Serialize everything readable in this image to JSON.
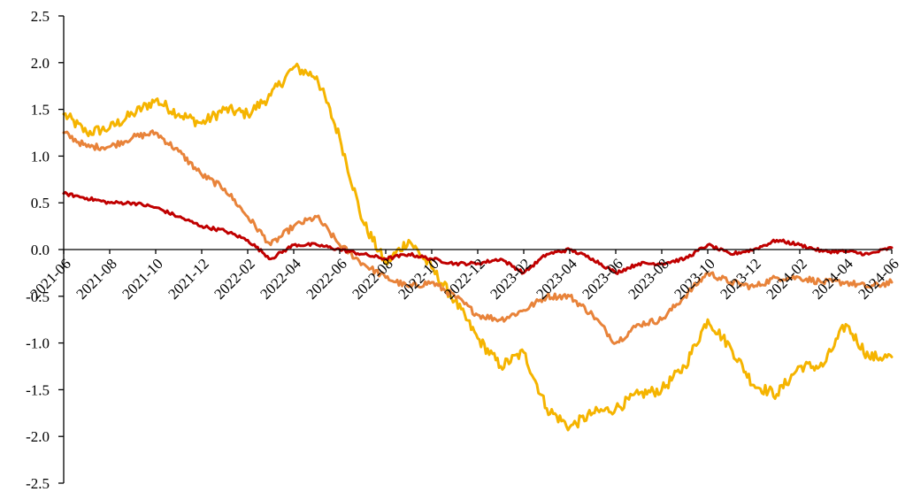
{
  "chart_data": {
    "type": "line",
    "title": "",
    "xlabel": "",
    "ylabel": "",
    "ylim": [
      -2.5,
      2.5
    ],
    "yticks": [
      -2.5,
      -2.0,
      -1.5,
      -1.0,
      -0.5,
      0.0,
      0.5,
      1.0,
      1.5,
      2.0,
      2.5
    ],
    "ytick_labels": [
      "-2.5",
      "-2.0",
      "-1.5",
      "-1.0",
      "-0.5",
      "0.0",
      "0.5",
      "1.0",
      "1.5",
      "2.0",
      "2.5"
    ],
    "xlim": [
      "2021-06",
      "2024-06"
    ],
    "xtick_labels": [
      "2021-06",
      "2021-08",
      "2021-10",
      "2021-12",
      "2022-02",
      "2022-04",
      "2022-06",
      "2022-08",
      "2022-10",
      "2022-12",
      "2023-02",
      "2023-04",
      "2023-06",
      "2023-08",
      "2023-10",
      "2023-12",
      "2024-02",
      "2024-04",
      "2024-06"
    ],
    "legend": "none",
    "grid": false,
    "series": [
      {
        "color": "#F5B400",
        "x": [
          "2021-06",
          "2021-07",
          "2021-08",
          "2021-09",
          "2021-10",
          "2021-11",
          "2021-12",
          "2022-01",
          "2022-02",
          "2022-03",
          "2022-04",
          "2022-05",
          "2022-06",
          "2022-07",
          "2022-08",
          "2022-09",
          "2022-10",
          "2022-11",
          "2022-12",
          "2023-01",
          "2023-02",
          "2023-03",
          "2023-04",
          "2023-05",
          "2023-06",
          "2023-07",
          "2023-08",
          "2023-09",
          "2023-10",
          "2023-11",
          "2023-12",
          "2024-01",
          "2024-02",
          "2024-03",
          "2024-04",
          "2024-05",
          "2024-06"
        ],
        "values": [
          1.45,
          1.25,
          1.3,
          1.45,
          1.6,
          1.45,
          1.35,
          1.5,
          1.45,
          1.65,
          1.95,
          1.85,
          1.2,
          0.3,
          -0.15,
          0.1,
          -0.2,
          -0.55,
          -0.95,
          -1.25,
          -1.1,
          -1.7,
          -1.9,
          -1.75,
          -1.7,
          -1.55,
          -1.5,
          -1.25,
          -0.75,
          -1.05,
          -1.45,
          -1.55,
          -1.25,
          -1.25,
          -0.8,
          -1.15,
          -1.15
        ]
      },
      {
        "color": "#E8833A",
        "x": [
          "2021-06",
          "2021-07",
          "2021-08",
          "2021-09",
          "2021-10",
          "2021-11",
          "2021-12",
          "2022-01",
          "2022-02",
          "2022-03",
          "2022-04",
          "2022-05",
          "2022-06",
          "2022-07",
          "2022-08",
          "2022-09",
          "2022-10",
          "2022-11",
          "2022-12",
          "2023-01",
          "2023-02",
          "2023-03",
          "2023-04",
          "2023-05",
          "2023-06",
          "2023-07",
          "2023-08",
          "2023-09",
          "2023-10",
          "2023-11",
          "2023-12",
          "2024-01",
          "2024-02",
          "2024-03",
          "2024-04",
          "2024-05",
          "2024-06"
        ],
        "values": [
          1.25,
          1.1,
          1.1,
          1.2,
          1.25,
          1.05,
          0.8,
          0.65,
          0.35,
          0.05,
          0.25,
          0.35,
          0.05,
          -0.15,
          -0.3,
          -0.4,
          -0.35,
          -0.5,
          -0.7,
          -0.75,
          -0.65,
          -0.5,
          -0.5,
          -0.7,
          -1.0,
          -0.8,
          -0.75,
          -0.5,
          -0.25,
          -0.35,
          -0.4,
          -0.3,
          -0.3,
          -0.35,
          -0.35,
          -0.4,
          -0.35
        ]
      },
      {
        "color": "#C00000",
        "x": [
          "2021-06",
          "2021-07",
          "2021-08",
          "2021-09",
          "2021-10",
          "2021-11",
          "2021-12",
          "2022-01",
          "2022-02",
          "2022-03",
          "2022-04",
          "2022-05",
          "2022-06",
          "2022-07",
          "2022-08",
          "2022-09",
          "2022-10",
          "2022-11",
          "2022-12",
          "2023-01",
          "2023-02",
          "2023-03",
          "2023-04",
          "2023-05",
          "2023-06",
          "2023-07",
          "2023-08",
          "2023-09",
          "2023-10",
          "2023-11",
          "2023-12",
          "2024-01",
          "2024-02",
          "2024-03",
          "2024-04",
          "2024-05",
          "2024-06"
        ],
        "values": [
          0.6,
          0.55,
          0.5,
          0.5,
          0.45,
          0.35,
          0.25,
          0.2,
          0.1,
          -0.1,
          0.05,
          0.05,
          0.0,
          -0.05,
          -0.1,
          -0.05,
          -0.1,
          -0.15,
          -0.15,
          -0.1,
          -0.25,
          -0.05,
          0.0,
          -0.1,
          -0.25,
          -0.15,
          -0.15,
          -0.1,
          0.05,
          -0.05,
          0.0,
          0.1,
          0.05,
          -0.02,
          -0.02,
          -0.05,
          0.02
        ]
      }
    ]
  }
}
